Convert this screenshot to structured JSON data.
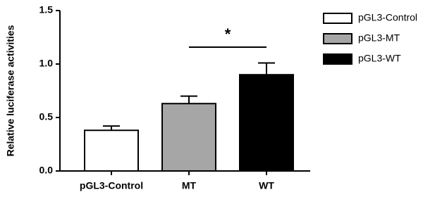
{
  "chart_data": {
    "type": "bar",
    "ylabel": "Relative luciferase activities",
    "categories": [
      "pGL3-Control",
      "MT",
      "WT"
    ],
    "values": [
      0.38,
      0.63,
      0.9
    ],
    "errors": [
      0.04,
      0.07,
      0.11
    ],
    "colors": [
      "#ffffff",
      "#a6a6a6",
      "#000000"
    ],
    "legend": [
      "pGL3-Control",
      "pGL3-MT",
      "pGL3-WT"
    ],
    "annotations": [
      {
        "text": "*"
      }
    ],
    "ylim": [
      0,
      1.5
    ],
    "yticks": [
      {
        "value": 0,
        "label": "0.0"
      },
      {
        "value": 0.5,
        "label": "0.5"
      },
      {
        "value": 1,
        "label": "1.0"
      },
      {
        "value": 1.5,
        "label": "1.5"
      }
    ],
    "grid": false
  }
}
